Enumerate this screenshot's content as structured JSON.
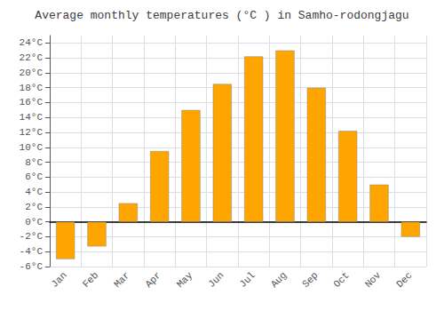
{
  "chart_data": {
    "type": "bar",
    "title": "Average monthly temperatures (°C ) in Samho-rodongjagu",
    "categories": [
      "Jan",
      "Feb",
      "Mar",
      "Apr",
      "May",
      "Jun",
      "Jul",
      "Aug",
      "Sep",
      "Oct",
      "Nov",
      "Dec"
    ],
    "values": [
      -5.0,
      -3.3,
      2.5,
      9.5,
      15.0,
      18.5,
      22.2,
      23.0,
      18.0,
      12.2,
      5.0,
      -2.0
    ],
    "color": "#FFA500",
    "ylim": [
      -6,
      25
    ],
    "yticks": [
      {
        "value": -6,
        "label": "-6°C"
      },
      {
        "value": -4,
        "label": "-4°C"
      },
      {
        "value": -2,
        "label": "-2°C"
      },
      {
        "value": 0,
        "label": "0°C"
      },
      {
        "value": 2,
        "label": "2°C"
      },
      {
        "value": 4,
        "label": "4°C"
      },
      {
        "value": 6,
        "label": "6°C"
      },
      {
        "value": 8,
        "label": "8°C"
      },
      {
        "value": 10,
        "label": "10°C"
      },
      {
        "value": 12,
        "label": "12°C"
      },
      {
        "value": 14,
        "label": "14°C"
      },
      {
        "value": 16,
        "label": "16°C"
      },
      {
        "value": 18,
        "label": "18°C"
      },
      {
        "value": 20,
        "label": "20°C"
      },
      {
        "value": 22,
        "label": "22°C"
      },
      {
        "value": 24,
        "label": "24°C"
      }
    ],
    "grid": true
  }
}
